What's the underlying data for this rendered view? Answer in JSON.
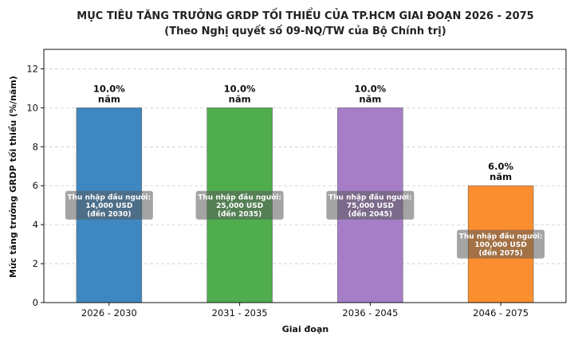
{
  "chart_data": {
    "type": "bar",
    "title": "MỤC TIÊU TĂNG TRƯỞNG GRDP TỐI THIỂU CỦA TP.HCM GIAI ĐOẠN 2026 - 2075",
    "subtitle": "(Theo Nghị quyết số 09-NQ/TW của Bộ Chính trị)",
    "xlabel": "Giai đoạn",
    "ylabel": "Mức tăng trưởng GRDP tối thiểu (%/năm)",
    "ylim": [
      0,
      13
    ],
    "yticks": [
      0,
      2,
      4,
      6,
      8,
      10,
      12
    ],
    "grid": true,
    "categories": [
      "2026 - 2030",
      "2031 - 2035",
      "2036 - 2045",
      "2046 - 2075"
    ],
    "values": [
      10.0,
      10.0,
      10.0,
      6.0
    ],
    "colors": [
      "#3f87c0",
      "#4fad4e",
      "#a67ec8",
      "#fb8e2e"
    ],
    "value_labels": [
      [
        "10.0%",
        "năm"
      ],
      [
        "10.0%",
        "năm"
      ],
      [
        "10.0%",
        "năm"
      ],
      [
        "6.0%",
        "năm"
      ]
    ],
    "annotations": [
      {
        "value": 5,
        "lines": [
          "Thu nhập đầu người:",
          "14,000 USD",
          "(đến 2030)"
        ]
      },
      {
        "value": 5,
        "lines": [
          "Thu nhập đầu người:",
          "25,000 USD",
          "(đến 2035)"
        ]
      },
      {
        "value": 5,
        "lines": [
          "Thu nhập đầu người:",
          "75,000 USD",
          "(đến 2045)"
        ]
      },
      {
        "value": 3,
        "lines": [
          "Thu nhập đầu người:",
          "100,000 USD",
          "(đến 2075)"
        ]
      }
    ]
  }
}
